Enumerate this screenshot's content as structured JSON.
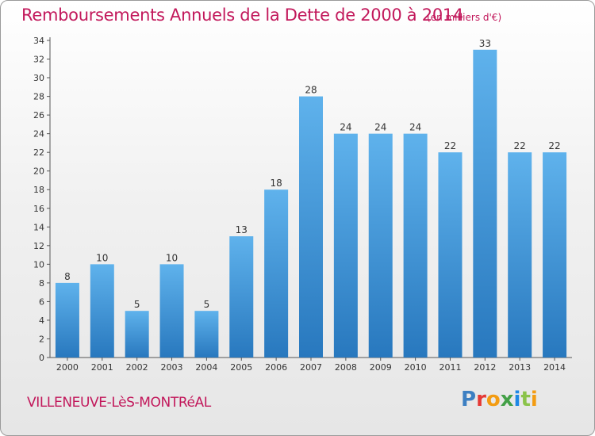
{
  "header": {
    "title": "Remboursements Annuels de la Dette de 2000 à 2014",
    "subtitle": "(en milliers d'€)"
  },
  "footer": {
    "commune": "VILLENEUVE-LèS-MONTRéAL",
    "logo_text": "Proxiti"
  },
  "colors": {
    "bar_top": "#5fb2ec",
    "bar_bottom": "#2878be",
    "title": "#c2185b",
    "logo_letters": [
      "#3c7fc2",
      "#e53935",
      "#f39c12",
      "#43a047",
      "#1e88e5",
      "#8bc34a",
      "#f39c12"
    ]
  },
  "chart_data": {
    "type": "bar",
    "categories": [
      "2000",
      "2001",
      "2002",
      "2003",
      "2004",
      "2005",
      "2006",
      "2007",
      "2008",
      "2009",
      "2010",
      "2011",
      "2012",
      "2013",
      "2014"
    ],
    "values": [
      8,
      10,
      5,
      10,
      5,
      13,
      18,
      28,
      24,
      24,
      24,
      22,
      33,
      22,
      22
    ],
    "ylim": [
      0,
      34
    ],
    "yticks": [
      0,
      2,
      4,
      6,
      8,
      10,
      12,
      14,
      16,
      18,
      20,
      22,
      24,
      26,
      28,
      30,
      32,
      34
    ],
    "grid": false,
    "legend": "none"
  }
}
